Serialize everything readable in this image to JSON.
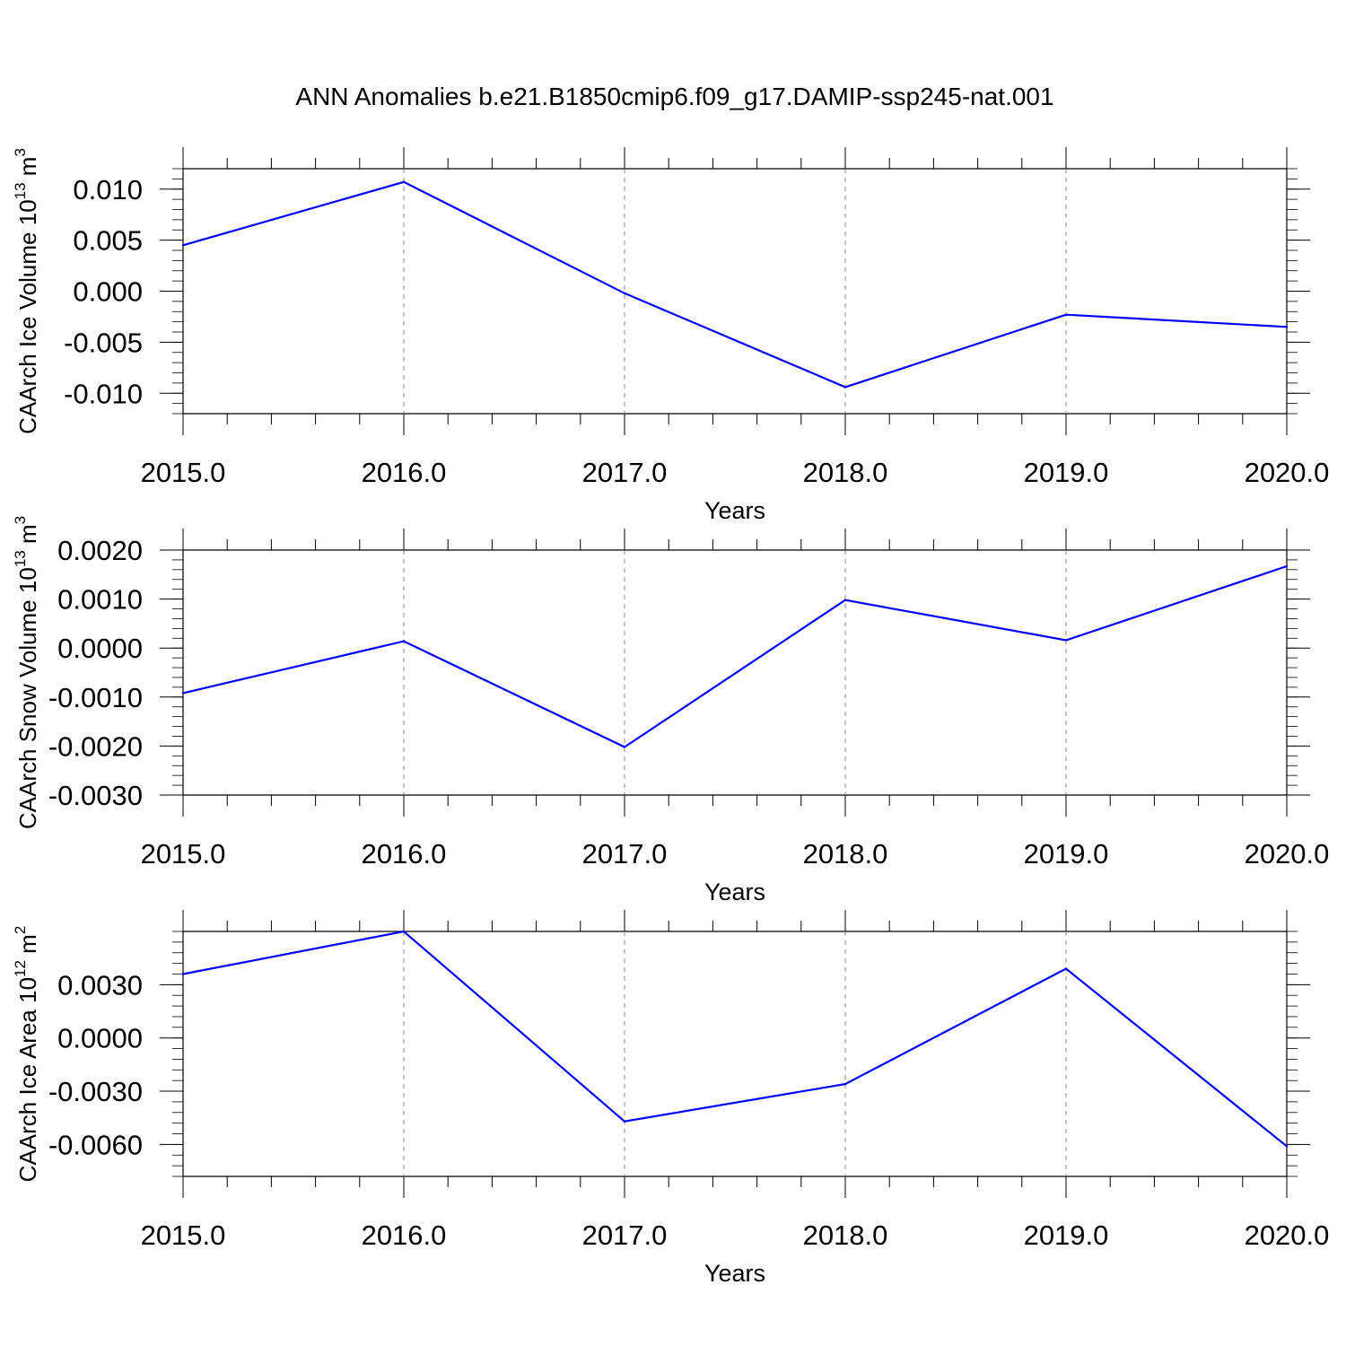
{
  "title": "ANN Anomalies b.e21.B1850cmip6.f09_g17.DAMIP-ssp245-nat.001",
  "colors": {
    "series": "#0000ff",
    "axis": "#000000",
    "grid": "#888888"
  },
  "chart_data": [
    {
      "type": "line",
      "title": "",
      "xlabel": "Years",
      "ylabel": {
        "text": "CAArch Ice Volume 10",
        "exp": "13",
        "unit": " m",
        "unit_exp": "3"
      },
      "xlim": [
        2015.0,
        2020.0
      ],
      "ylim": [
        -0.012,
        0.012
      ],
      "x": [
        2015.0,
        2016.0,
        2017.0,
        2018.0,
        2019.0,
        2020.0
      ],
      "xtick_labels": [
        "2015.0",
        "2016.0",
        "2017.0",
        "2018.0",
        "2019.0",
        "2020.0"
      ],
      "yticks": [
        0.01,
        0.005,
        0.0,
        -0.005,
        -0.01
      ],
      "ytick_labels": [
        "0.010",
        "0.005",
        "0.000",
        "-0.005",
        "-0.010"
      ],
      "yminor_step": 0.001,
      "grid": "vertical-dashed",
      "series": [
        {
          "values": [
            0.0045,
            0.0107,
            -0.0002,
            -0.0094,
            -0.0023,
            -0.0035
          ]
        }
      ]
    },
    {
      "type": "line",
      "title": "",
      "xlabel": "Years",
      "ylabel": {
        "text": "CAArch Snow Volume 10",
        "exp": "13",
        "unit": " m",
        "unit_exp": "3"
      },
      "xlim": [
        2015.0,
        2020.0
      ],
      "ylim": [
        -0.003,
        0.002
      ],
      "x": [
        2015.0,
        2016.0,
        2017.0,
        2018.0,
        2019.0,
        2020.0
      ],
      "xtick_labels": [
        "2015.0",
        "2016.0",
        "2017.0",
        "2018.0",
        "2019.0",
        "2020.0"
      ],
      "yticks": [
        0.002,
        0.001,
        0.0,
        -0.001,
        -0.002,
        -0.003
      ],
      "ytick_labels": [
        "0.0020",
        "0.0010",
        "0.0000",
        "-0.0010",
        "-0.0020",
        "-0.0030"
      ],
      "yminor_step": 0.0002,
      "grid": "vertical-dashed",
      "series": [
        {
          "values": [
            -0.00092,
            0.00014,
            -0.00202,
            0.00098,
            0.00016,
            0.00167
          ]
        }
      ]
    },
    {
      "type": "line",
      "title": "",
      "xlabel": "Years",
      "ylabel": {
        "text": "CAArch Ice Area 10",
        "exp": "12",
        "unit": " m",
        "unit_exp": "2"
      },
      "xlim": [
        2015.0,
        2020.0
      ],
      "ylim": [
        -0.0078,
        0.006
      ],
      "x": [
        2015.0,
        2016.0,
        2017.0,
        2018.0,
        2019.0,
        2020.0
      ],
      "xtick_labels": [
        "2015.0",
        "2016.0",
        "2017.0",
        "2018.0",
        "2019.0",
        "2020.0"
      ],
      "yticks": [
        0.003,
        0.0,
        -0.003,
        -0.006
      ],
      "ytick_labels": [
        "0.0030",
        "0.0000",
        "-0.0030",
        "-0.0060"
      ],
      "yminor_step": 0.0006,
      "grid": "vertical-dashed",
      "series": [
        {
          "values": [
            0.0036,
            0.006,
            -0.0047,
            -0.0026,
            0.0039,
            -0.0061
          ]
        }
      ]
    }
  ]
}
